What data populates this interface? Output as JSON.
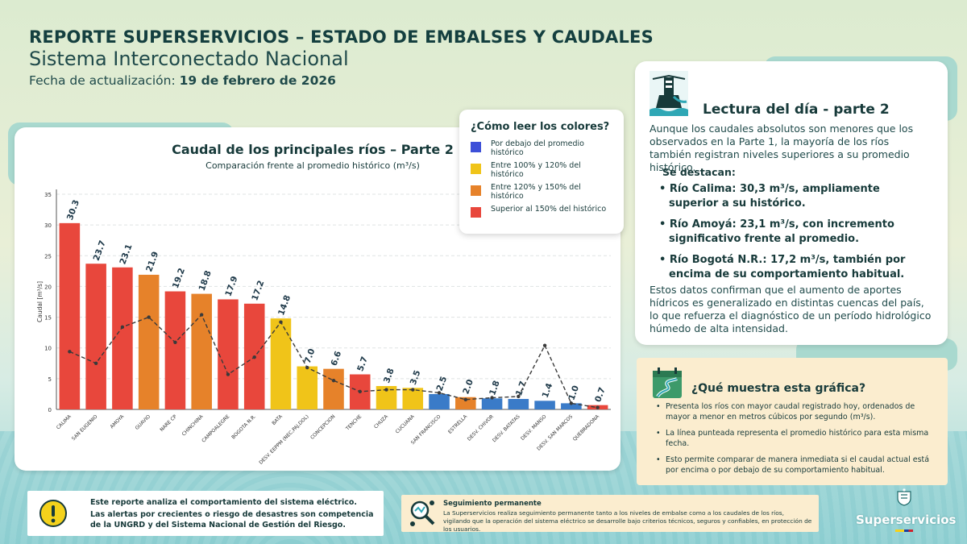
{
  "header": {
    "title": "REPORTE SUPERSERVICIOS – ESTADO DE EMBALSES Y CAUDALES",
    "subtitle": "Sistema Interconectado Nacional",
    "date_label": "Fecha de actualización:",
    "date_value": "19 de febrero de 2026"
  },
  "colors": {
    "below": "#3d4fd8",
    "range_100_120": "#f0c419",
    "range_120_150": "#e6822a",
    "above_150": "#e8473c",
    "blue_bar": "#3a7bc8"
  },
  "chart_data": {
    "type": "bar",
    "title": "Caudal de los principales ríos – Parte 2",
    "subtitle": "Comparación frente al promedio histórico (m³/s)",
    "ylabel": "Caudal [m³/s]",
    "xlabel": "",
    "ylim": [
      0,
      35
    ],
    "yticks": [
      0,
      5,
      10,
      15,
      20,
      25,
      30,
      35
    ],
    "grid": true,
    "categories": [
      "CALIMA",
      "SAN EUGENIO",
      "AMOYA",
      "GUAVIO",
      "NARE CP",
      "CHINCHINA",
      "CAMPOALEGRE",
      "BOGOTA N.R.",
      "BATA",
      "DESV. EEPPM (NEC,PAJ,DOL)",
      "CONCEPCION",
      "TENCHE",
      "CHUZA",
      "CUCUANA",
      "SAN FRANCISCO",
      "ESTRELLA",
      "DESV. CHIVOR",
      "DESV. BATATAS",
      "DESV. MANSO",
      "DESV. SAN MARCOS",
      "QUEBRADONA"
    ],
    "series": [
      {
        "values": [
          30.3,
          23.7,
          23.1,
          21.9,
          19.2,
          18.8,
          17.9,
          17.2,
          14.8,
          7.0,
          6.6,
          5.7,
          3.8,
          3.5,
          2.5,
          2.0,
          1.8,
          1.7,
          1.4,
          1.0,
          0.7
        ],
        "labels": [
          "30.3",
          "23.7",
          "23.1",
          "21.9",
          "19.2",
          "18.8",
          "17.9",
          "17.2",
          "14.8",
          "7.0",
          "6.6",
          "5.7",
          "3.8",
          "3.5",
          "2.5",
          "2.0",
          "1.8",
          "1.7",
          "1.4",
          "1.0",
          "0.7"
        ],
        "color_keys": [
          "above_150",
          "above_150",
          "above_150",
          "range_120_150",
          "above_150",
          "range_120_150",
          "above_150",
          "above_150",
          "range_100_120",
          "range_100_120",
          "range_120_150",
          "above_150",
          "range_100_120",
          "range_100_120",
          "blue_bar",
          "range_120_150",
          "blue_bar",
          "blue_bar",
          "blue_bar",
          "blue_bar",
          "above_150"
        ]
      },
      {
        "style": "dashed-line",
        "values": [
          9.4,
          7.5,
          13.4,
          15.0,
          10.9,
          15.4,
          5.7,
          8.5,
          14.2,
          6.8,
          4.7,
          2.9,
          3.2,
          3.2,
          2.7,
          1.6,
          1.9,
          2.1,
          10.4,
          1.0,
          0.3
        ]
      }
    ],
    "legend": {
      "title": "¿Cómo leer los colores?",
      "position": "top-right",
      "items": [
        {
          "label": "Por debajo del promedio histórico",
          "color_key": "below"
        },
        {
          "label": "Entre 100% y 120% del histórico",
          "color_key": "range_100_120"
        },
        {
          "label": "Entre 120% y 150% del histórico",
          "color_key": "range_120_150"
        },
        {
          "label": "Superior al 150% del histórico",
          "color_key": "above_150"
        }
      ]
    }
  },
  "reading": {
    "icon": "dam-icon",
    "title": "Lectura del día - parte 2",
    "intro": "Aunque los caudales absolutos son menores que los observados en la Parte 1, la mayoría de los ríos también registran niveles superiores a su promedio histórico.",
    "highlight_label": "Se destacan:",
    "items": [
      "• Río Calima: 30,3 m³/s, ampliamente superior a su histórico.",
      "• Río Amoyá: 23,1 m³/s, con incremento significativo frente al promedio.",
      "• Río Bogotá N.R.: 17,2 m³/s, también por encima de su comportamiento habitual."
    ],
    "outro": "Estos datos confirman que el aumento de aportes hídricos es generalizado en distintas cuencas del país, lo que refuerza el diagnóstico de un período hidrológico húmedo de alta intensidad."
  },
  "what": {
    "icon": "river-calendar-icon",
    "title": "¿Qué muestra esta gráfica?",
    "items": [
      "Presenta los ríos con mayor caudal registrado hoy, ordenados de mayor a menor en metros cúbicos por segundo (m³/s).",
      "La línea punteada representa el promedio histórico para esta misma fecha.",
      "Esto permite comparar de manera inmediata si el caudal actual está por encima o por debajo de su comportamiento habitual."
    ]
  },
  "alert": {
    "icon": "warning-icon",
    "line1": "Este reporte analiza el comportamiento del sistema eléctrico.",
    "line2": "Las alertas por crecientes o riesgo de desastres son competencia de la UNGRD y del Sistema Nacional de Gestión del Riesgo."
  },
  "monitoring": {
    "icon": "monitoring-icon",
    "title": "Seguimiento permanente",
    "body": "La Superservicios realiza seguimiento permanente tanto a los niveles de embalse como a los caudales de los ríos, vigilando que la operación del sistema eléctrico se desarrolle bajo criterios técnicos, seguros y confiables, en protección de los usuarios."
  },
  "brand": {
    "name": "Superservicios",
    "icon": "coat-of-arms-icon"
  }
}
